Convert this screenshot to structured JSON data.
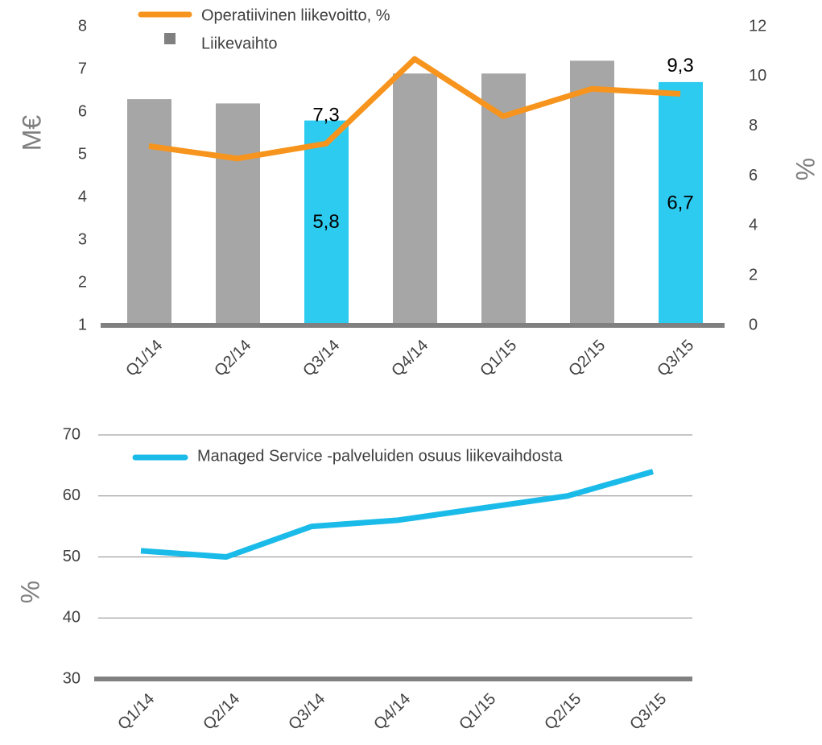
{
  "chart_data": [
    {
      "type": "bar",
      "categories": [
        "Q1/14",
        "Q2/14",
        "Q3/14",
        "Q4/14",
        "Q1/15",
        "Q2/15",
        "Q3/15"
      ],
      "ylabel": "M€",
      "y2label": "%",
      "ylim": [
        1,
        8
      ],
      "yticks": [
        1,
        2,
        3,
        4,
        5,
        6,
        7,
        8
      ],
      "y2lim": [
        0,
        12
      ],
      "y2ticks": [
        0,
        2,
        4,
        6,
        8,
        10,
        12
      ],
      "series": [
        {
          "name": "Liikevaihto",
          "type": "bar",
          "color": "#a6a6a6",
          "colors": [
            "#a6a6a6",
            "#a6a6a6",
            "#2ecbf0",
            "#a6a6a6",
            "#a6a6a6",
            "#a6a6a6",
            "#2ecbf0"
          ],
          "values": [
            6.3,
            6.2,
            5.8,
            6.9,
            6.9,
            7.2,
            6.7
          ],
          "value_labels": [
            null,
            null,
            "5,8",
            null,
            null,
            null,
            "6,7"
          ]
        },
        {
          "name": "Operatiivinen liikevoitto, %",
          "type": "line",
          "axis": "y2",
          "color": "#f7941d",
          "values": [
            7.2,
            6.7,
            7.3,
            10.7,
            8.4,
            9.5,
            9.3
          ],
          "value_labels": [
            null,
            null,
            "7,3",
            null,
            null,
            null,
            "9,3"
          ]
        }
      ]
    },
    {
      "type": "line",
      "categories": [
        "Q1/14",
        "Q2/14",
        "Q3/14",
        "Q4/14",
        "Q1/15",
        "Q2/15",
        "Q3/15"
      ],
      "ylabel": "%",
      "ylim": [
        30,
        70
      ],
      "yticks": [
        30,
        40,
        50,
        60,
        70
      ],
      "grid": true,
      "series": [
        {
          "name": "Managed Service -palveluiden osuus liikevaihdosta",
          "color": "#1bbbe9",
          "values": [
            51,
            50,
            55,
            56,
            58,
            60,
            64
          ]
        }
      ]
    }
  ]
}
